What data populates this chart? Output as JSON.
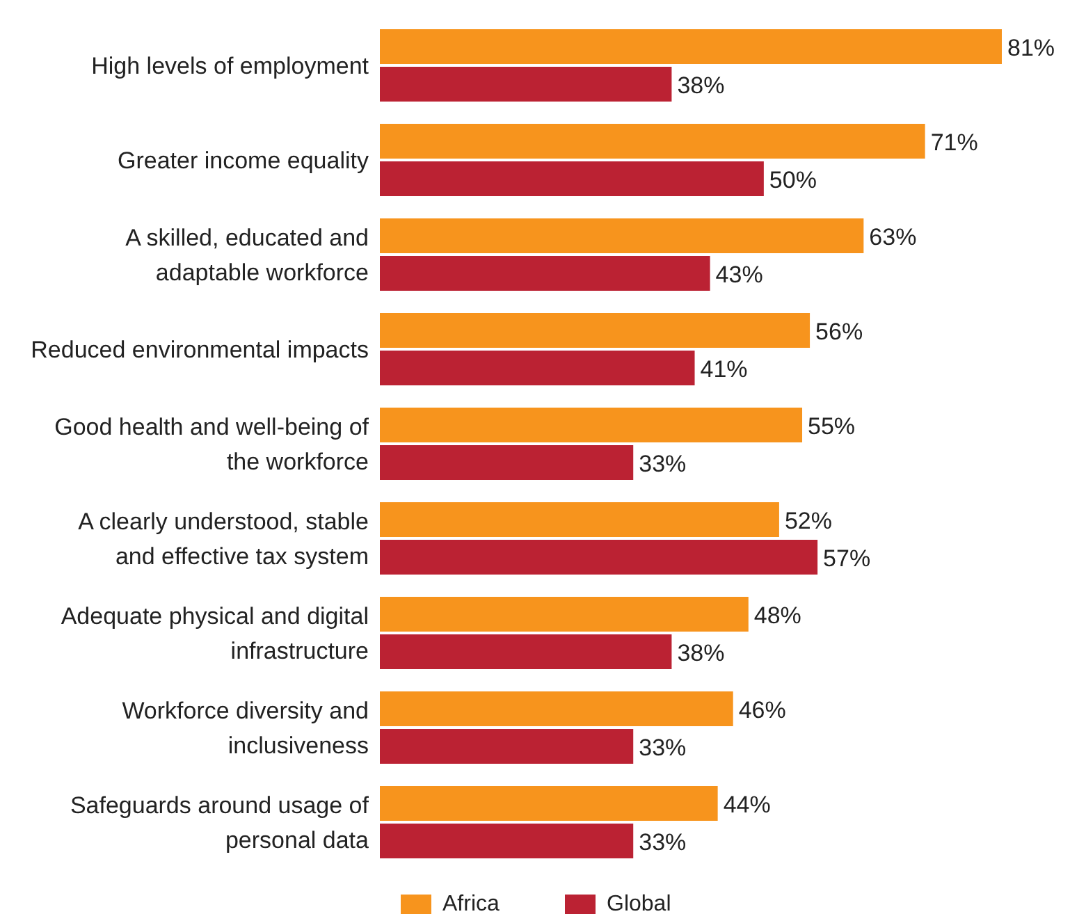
{
  "chart_data": {
    "type": "bar",
    "orientation": "horizontal",
    "legend": "bottom",
    "categories": [
      "High levels of employment",
      "Greater income equality",
      "A skilled, educated and adaptable workforce",
      "Reduced environmental impacts",
      "Good health and well-being of the workforce",
      "A clearly understood, stable and effective tax system",
      "Adequate physical and digital infrastructure",
      "Workforce diversity and inclusiveness",
      "Safeguards around usage of personal data"
    ],
    "series": [
      {
        "name": "Africa",
        "color": "#f7941d",
        "values": [
          81,
          71,
          63,
          56,
          55,
          52,
          48,
          46,
          44
        ],
        "value_labels": [
          "81%",
          "71%",
          "63%",
          "56%",
          "55%",
          "52%",
          "48%",
          "46%",
          "44%"
        ]
      },
      {
        "name": "Global",
        "color": "#bb2233",
        "values": [
          38,
          50,
          43,
          41,
          33,
          57,
          38,
          33,
          33
        ],
        "value_labels": [
          "38%",
          "50%",
          "43%",
          "41%",
          "33%",
          "57%",
          "38%",
          "33%",
          "33%"
        ]
      }
    ]
  }
}
